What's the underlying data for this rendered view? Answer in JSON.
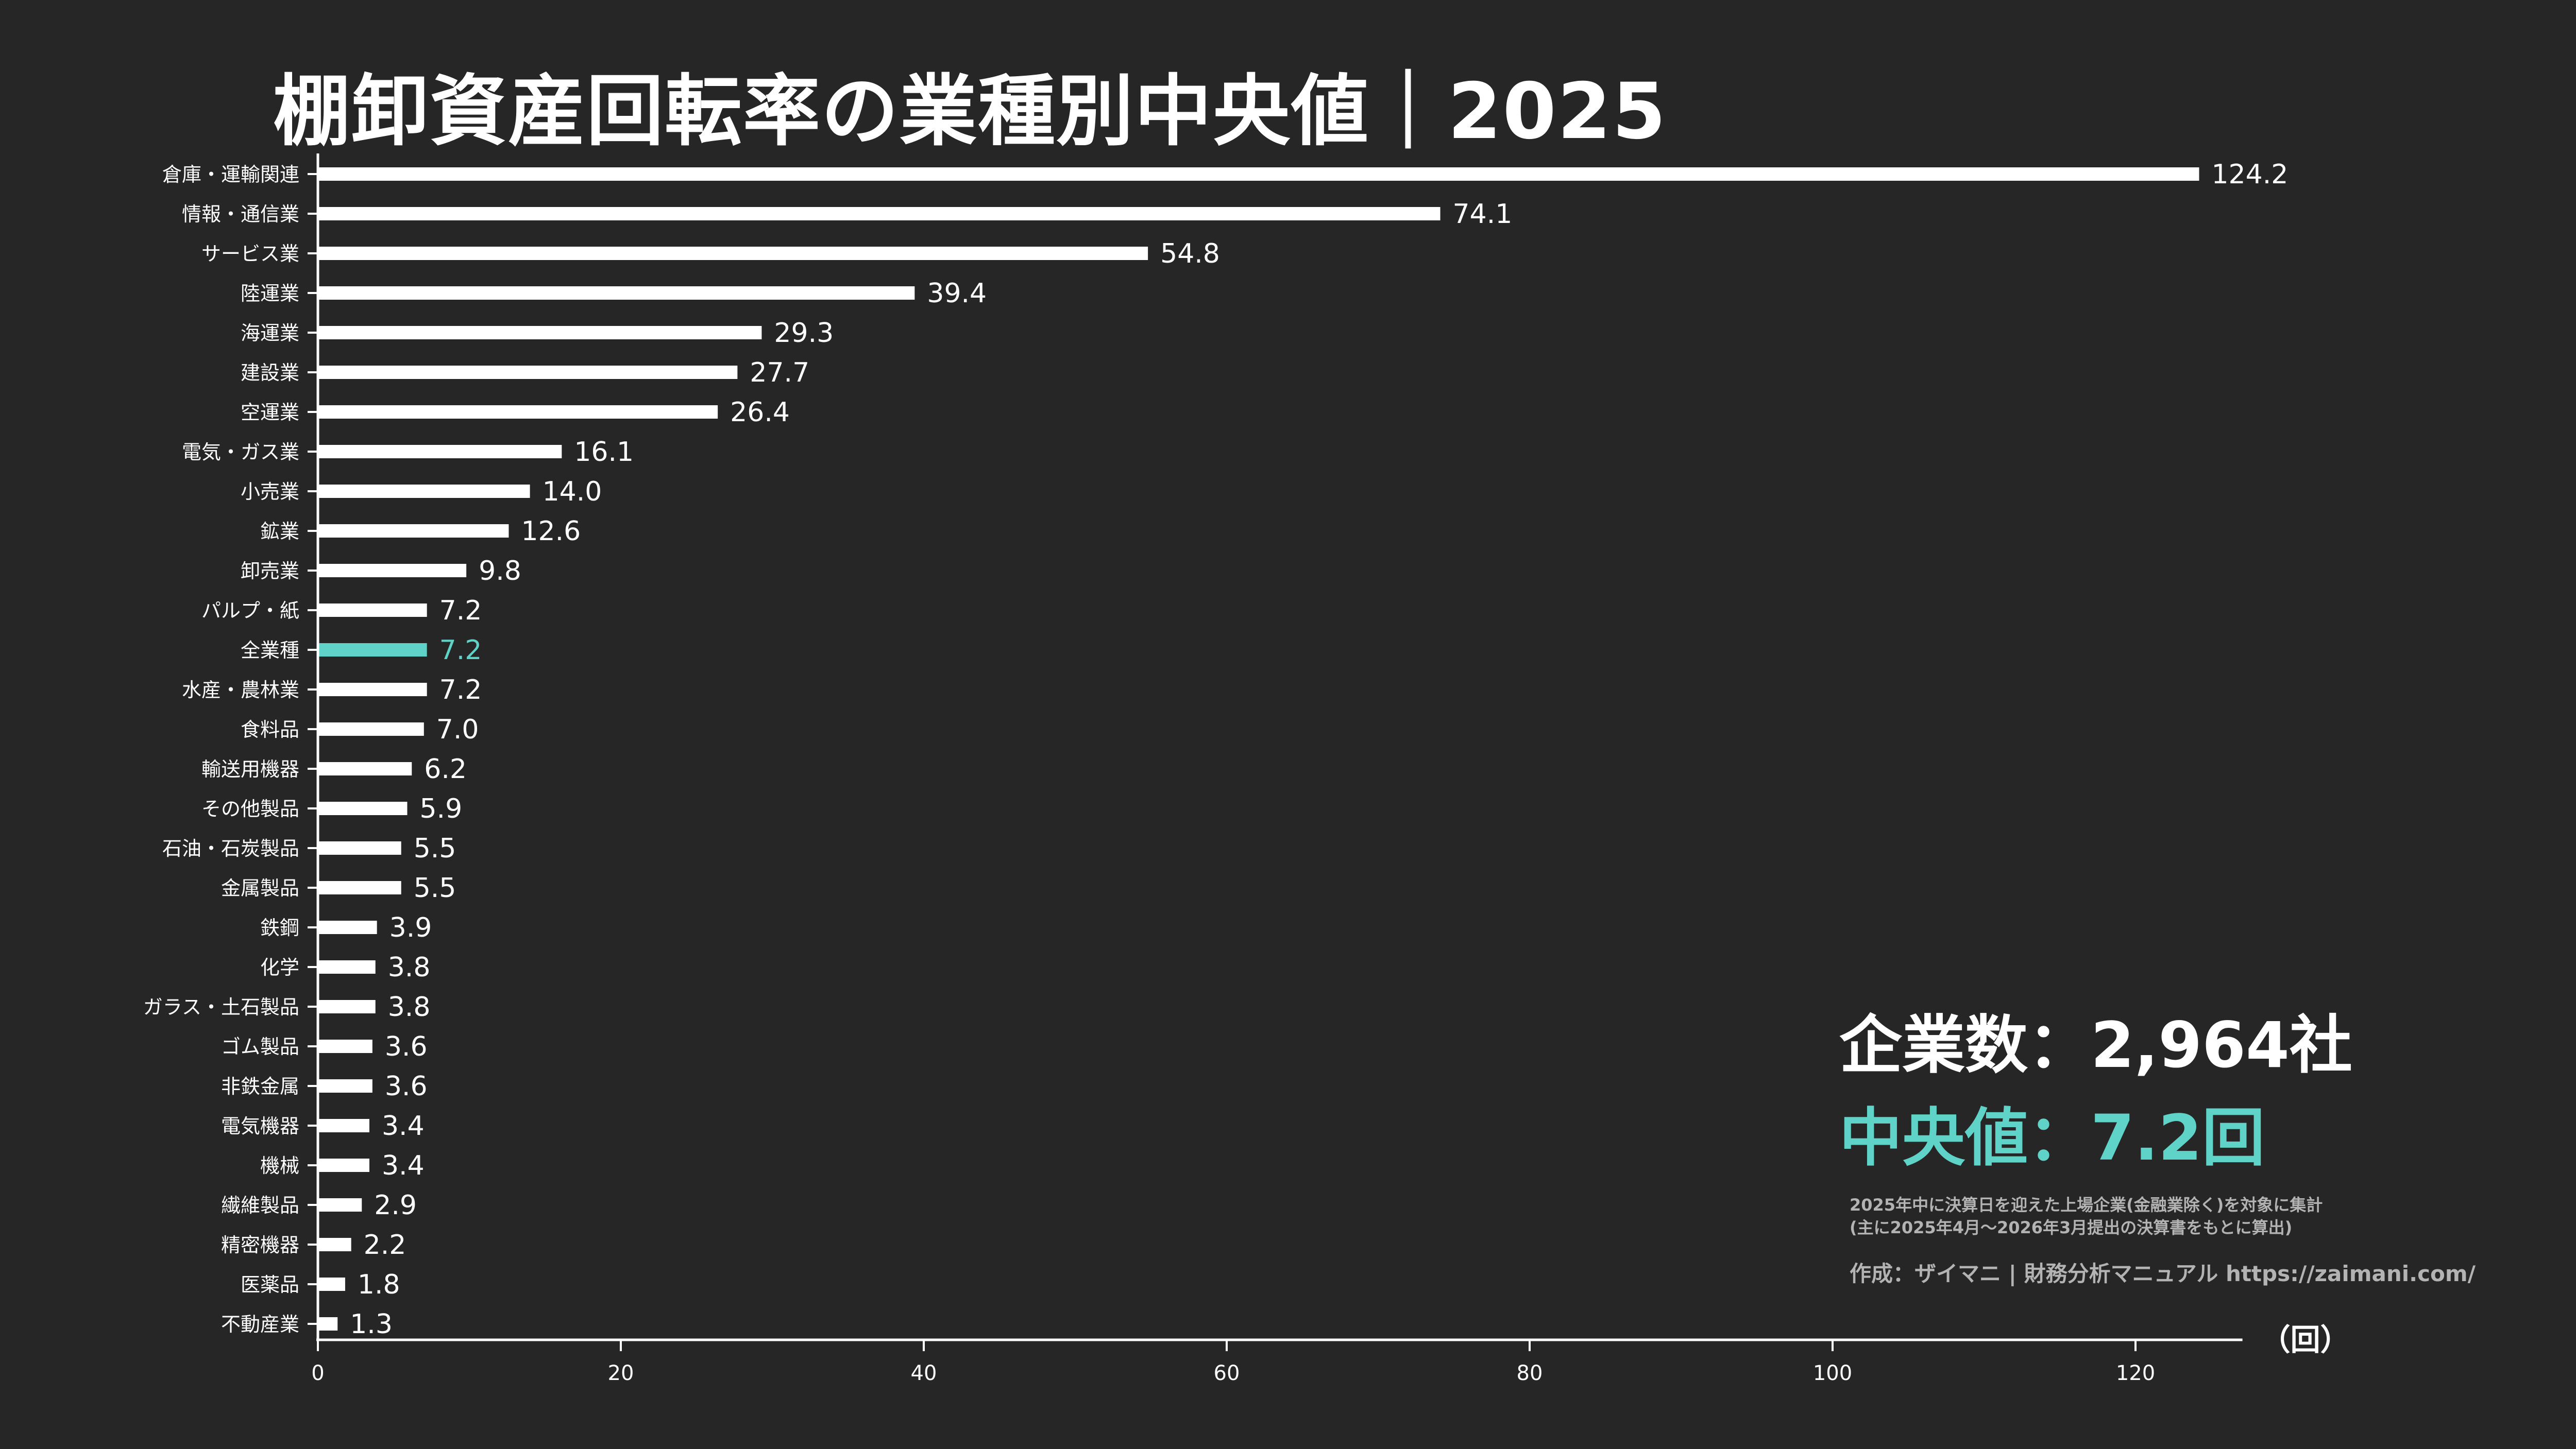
{
  "header": {
    "title": "棚卸資産回転率の業種別中央値｜2025"
  },
  "stats": {
    "companies": "企業数：2,964社",
    "median": "中央値：7.2回"
  },
  "notes": {
    "line1": "2025年中に決算日を迎えた上場企業(金融業除く)を対象に集計",
    "line2": "(主に2025年4月〜2026年3月提出の決算書をもとに算出)"
  },
  "credit": "作成：ザイマニ | 財務分析マニュアル https://zaimani.com/",
  "colors": {
    "background": "#262626",
    "bar": "#ffffff",
    "highlight": "#5fd3c7",
    "text": "#ffffff",
    "note": "#b3b3b3"
  },
  "chart_data": {
    "type": "bar",
    "orientation": "horizontal",
    "title": "棚卸資産回転率の業種別中央値｜2025",
    "xlabel": "（回）",
    "ylabel": "",
    "xlim": [
      0,
      124
    ],
    "xticks": [
      0,
      20,
      40,
      60,
      80,
      100,
      120
    ],
    "grid": false,
    "highlight_category": "全業種",
    "categories": [
      "倉庫・運輸関連",
      "情報・通信業",
      "サービス業",
      "陸運業",
      "海運業",
      "建設業",
      "空運業",
      "電気・ガス業",
      "小売業",
      "鉱業",
      "卸売業",
      "パルプ・紙",
      "全業種",
      "水産・農林業",
      "食料品",
      "輸送用機器",
      "その他製品",
      "石油・石炭製品",
      "金属製品",
      "鉄鋼",
      "化学",
      "ガラス・土石製品",
      "ゴム製品",
      "非鉄金属",
      "電気機器",
      "機械",
      "繊維製品",
      "精密機器",
      "医薬品",
      "不動産業"
    ],
    "values": [
      124.2,
      74.1,
      54.8,
      39.4,
      29.3,
      27.7,
      26.4,
      16.1,
      14.0,
      12.6,
      9.8,
      7.2,
      7.2,
      7.2,
      7.0,
      6.2,
      5.9,
      5.5,
      5.5,
      3.9,
      3.8,
      3.8,
      3.6,
      3.6,
      3.4,
      3.4,
      2.9,
      2.2,
      1.8,
      1.3
    ],
    "value_labels": [
      "124.2",
      "74.1",
      "54.8",
      "39.4",
      "29.3",
      "27.7",
      "26.4",
      "16.1",
      "14.0",
      "12.6",
      "9.8",
      "7.2",
      "7.2",
      "7.2",
      "7.0",
      "6.2",
      "5.9",
      "5.5",
      "5.5",
      "3.9",
      "3.8",
      "3.8",
      "3.6",
      "3.6",
      "3.4",
      "3.4",
      "2.9",
      "2.2",
      "1.8",
      "1.3"
    ]
  }
}
